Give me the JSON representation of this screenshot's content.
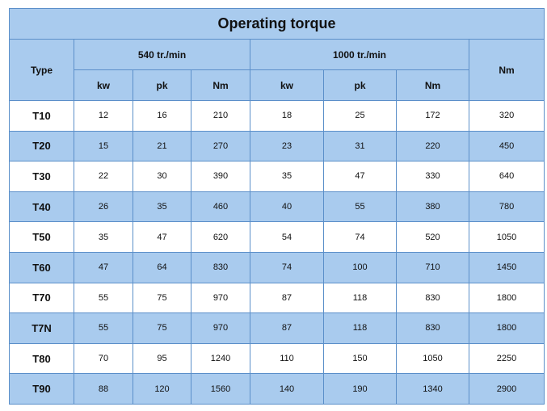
{
  "table": {
    "title": "Operating torque",
    "type_header": "Type",
    "group1_header": "540 tr./min",
    "group2_header": "1000 tr./min",
    "nm_header": "Nm",
    "sub_headers": [
      "kw",
      "pk",
      "Nm",
      "kw",
      "pk",
      "Nm"
    ],
    "rows": [
      {
        "type": "T10",
        "v": [
          "12",
          "16",
          "210",
          "18",
          "25",
          "172",
          "320"
        ]
      },
      {
        "type": "T20",
        "v": [
          "15",
          "21",
          "270",
          "23",
          "31",
          "220",
          "450"
        ]
      },
      {
        "type": "T30",
        "v": [
          "22",
          "30",
          "390",
          "35",
          "47",
          "330",
          "640"
        ]
      },
      {
        "type": "T40",
        "v": [
          "26",
          "35",
          "460",
          "40",
          "55",
          "380",
          "780"
        ]
      },
      {
        "type": "T50",
        "v": [
          "35",
          "47",
          "620",
          "54",
          "74",
          "520",
          "1050"
        ]
      },
      {
        "type": "T60",
        "v": [
          "47",
          "64",
          "830",
          "74",
          "100",
          "710",
          "1450"
        ]
      },
      {
        "type": "T70",
        "v": [
          "55",
          "75",
          "970",
          "87",
          "118",
          "830",
          "1800"
        ]
      },
      {
        "type": "T7N",
        "v": [
          "55",
          "75",
          "970",
          "87",
          "118",
          "830",
          "1800"
        ]
      },
      {
        "type": "T80",
        "v": [
          "70",
          "95",
          "1240",
          "110",
          "150",
          "1050",
          "2250"
        ]
      },
      {
        "type": "T90",
        "v": [
          "88",
          "120",
          "1560",
          "140",
          "190",
          "1340",
          "2900"
        ]
      }
    ],
    "colors": {
      "header_bg": "#a9cbee",
      "alt_row_bg": "#a9cbee",
      "border": "#5b8fc9"
    }
  }
}
